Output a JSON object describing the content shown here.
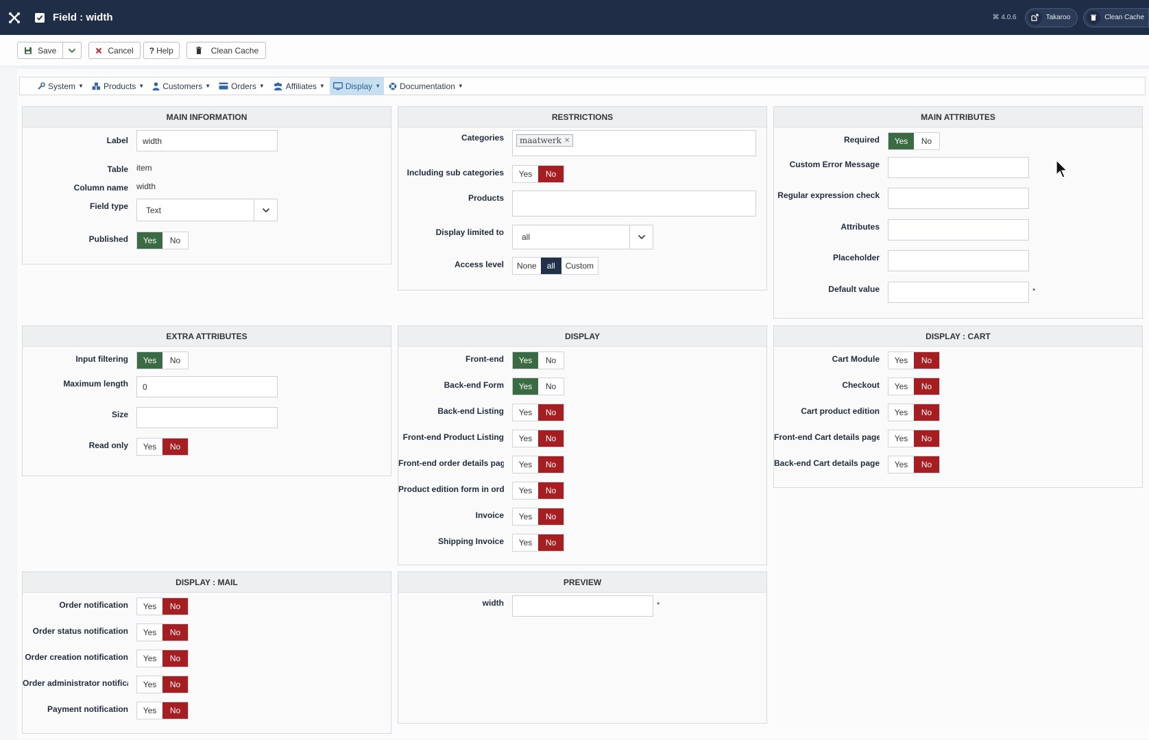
{
  "topbar": {
    "title": "Field : width",
    "version": "⌘ 4.0.6",
    "user_button": "Takaroo",
    "cache_button": "Clean Cache"
  },
  "toolbar": {
    "save": "Save",
    "cancel": "Cancel",
    "help": "Help",
    "clean_cache": "Clean Cache"
  },
  "menu": [
    {
      "label": "System",
      "icon": "wrench-icon"
    },
    {
      "label": "Products",
      "icon": "cubes-icon"
    },
    {
      "label": "Customers",
      "icon": "user-icon"
    },
    {
      "label": "Orders",
      "icon": "credit-card-icon"
    },
    {
      "label": "Affiliates",
      "icon": "users-icon"
    },
    {
      "label": "Display",
      "icon": "monitor-icon",
      "active": true
    },
    {
      "label": "Documentation",
      "icon": "lifebuoy-icon"
    }
  ],
  "main_information": {
    "title": "MAIN INFORMATION",
    "label_lbl": "Label",
    "label_value": "width",
    "table_lbl": "Table",
    "table_value": "item",
    "column_lbl": "Column name",
    "column_value": "width",
    "fieldtype_lbl": "Field type",
    "fieldtype_value": "Text",
    "published_lbl": "Published"
  },
  "restrictions": {
    "title": "RESTRICTIONS",
    "categories_lbl": "Categories",
    "category_tag": "maatwerk",
    "subcat_lbl": "Including sub categories",
    "products_lbl": "Products",
    "display_limited_lbl": "Display limited to",
    "display_limited_value": "all",
    "access_lbl": "Access level",
    "access_options": [
      "None",
      "all",
      "Custom"
    ]
  },
  "main_attributes": {
    "title": "MAIN ATTRIBUTES",
    "required_lbl": "Required",
    "error_lbl": "Custom Error Message",
    "regex_lbl": "Regular expression check",
    "attributes_lbl": "Attributes",
    "placeholder_lbl": "Placeholder",
    "default_lbl": "Default value"
  },
  "extra_attributes": {
    "title": "EXTRA ATTRIBUTES",
    "filter_lbl": "Input filtering",
    "maxlen_lbl": "Maximum length",
    "maxlen_value": "0",
    "size_lbl": "Size",
    "readonly_lbl": "Read only"
  },
  "display": {
    "title": "DISPLAY",
    "rows": [
      {
        "label": "Front-end",
        "on": "yes"
      },
      {
        "label": "Back-end Form",
        "on": "yes"
      },
      {
        "label": "Back-end Listing",
        "on": "no"
      },
      {
        "label": "Front-end Product Listing",
        "on": "no"
      },
      {
        "label": "Front-end order details pag",
        "on": "no"
      },
      {
        "label": "Product edition form in ord",
        "on": "no"
      },
      {
        "label": "Invoice",
        "on": "no"
      },
      {
        "label": "Shipping Invoice",
        "on": "no"
      }
    ]
  },
  "display_cart": {
    "title": "DISPLAY : CART",
    "rows": [
      {
        "label": "Cart Module",
        "on": "no"
      },
      {
        "label": "Checkout",
        "on": "no"
      },
      {
        "label": "Cart product edition",
        "on": "no"
      },
      {
        "label": "Front-end Cart details page",
        "on": "no"
      },
      {
        "label": "Back-end Cart details page",
        "on": "no"
      }
    ]
  },
  "display_mail": {
    "title": "DISPLAY : MAIL",
    "rows": [
      {
        "label": "Order notification",
        "on": "no"
      },
      {
        "label": "Order status notification",
        "on": "no"
      },
      {
        "label": "Order creation notification",
        "on": "no"
      },
      {
        "label": "Order administrator notifica",
        "on": "no"
      },
      {
        "label": "Payment notification",
        "on": "no"
      }
    ]
  },
  "preview": {
    "title": "PREVIEW",
    "field_lbl": "width",
    "star": "*"
  },
  "toggle": {
    "yes": "Yes",
    "no": "No"
  },
  "star": "*"
}
